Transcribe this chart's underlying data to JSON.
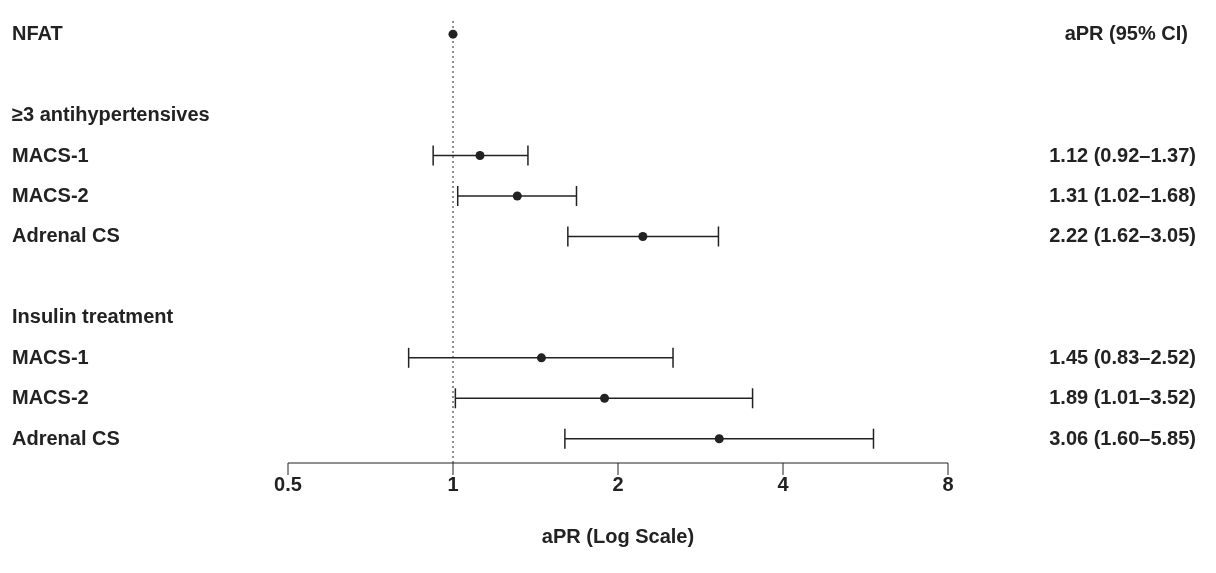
{
  "chart_data": {
    "type": "scatter",
    "orientation": "horizontal",
    "categories": [
      "NFAT",
      null,
      "≥3 antihypertensives",
      "MACS-1",
      "MACS-2",
      "Adrenal CS",
      null,
      "Insulin treatment",
      "MACS-1",
      "MACS-2",
      "Adrenal CS"
    ],
    "values": [
      1,
      null,
      null,
      1.12,
      1.31,
      2.22,
      null,
      null,
      1.45,
      1.89,
      3.06
    ],
    "errors": [
      null,
      null,
      null,
      [
        0.92,
        1.37
      ],
      [
        1.02,
        1.68
      ],
      [
        1.62,
        3.05
      ],
      null,
      null,
      [
        0.83,
        2.52
      ],
      [
        1.01,
        3.52
      ],
      [
        1.6,
        5.85
      ]
    ],
    "value_labels": [
      null,
      null,
      null,
      "1.12 (0.92–1.37)",
      "1.31 (1.02–1.68)",
      "2.22 (1.62–3.05)",
      null,
      null,
      "1.45 (0.83–2.52)",
      "1.89 (1.01–3.52)",
      "3.06 (1.60–5.85)"
    ],
    "color": "#222222",
    "marker": "circle",
    "log": "x",
    "xlim": [
      0.5,
      8
    ],
    "xticks": [
      0.5,
      1,
      2,
      4,
      8
    ],
    "xlabel": "aPR (Log Scale)",
    "annotations": [
      "aPR (95% CI)"
    ],
    "ref_lines": [
      {
        "axis": "x",
        "value": 1,
        "line_style": "dotted"
      }
    ]
  }
}
